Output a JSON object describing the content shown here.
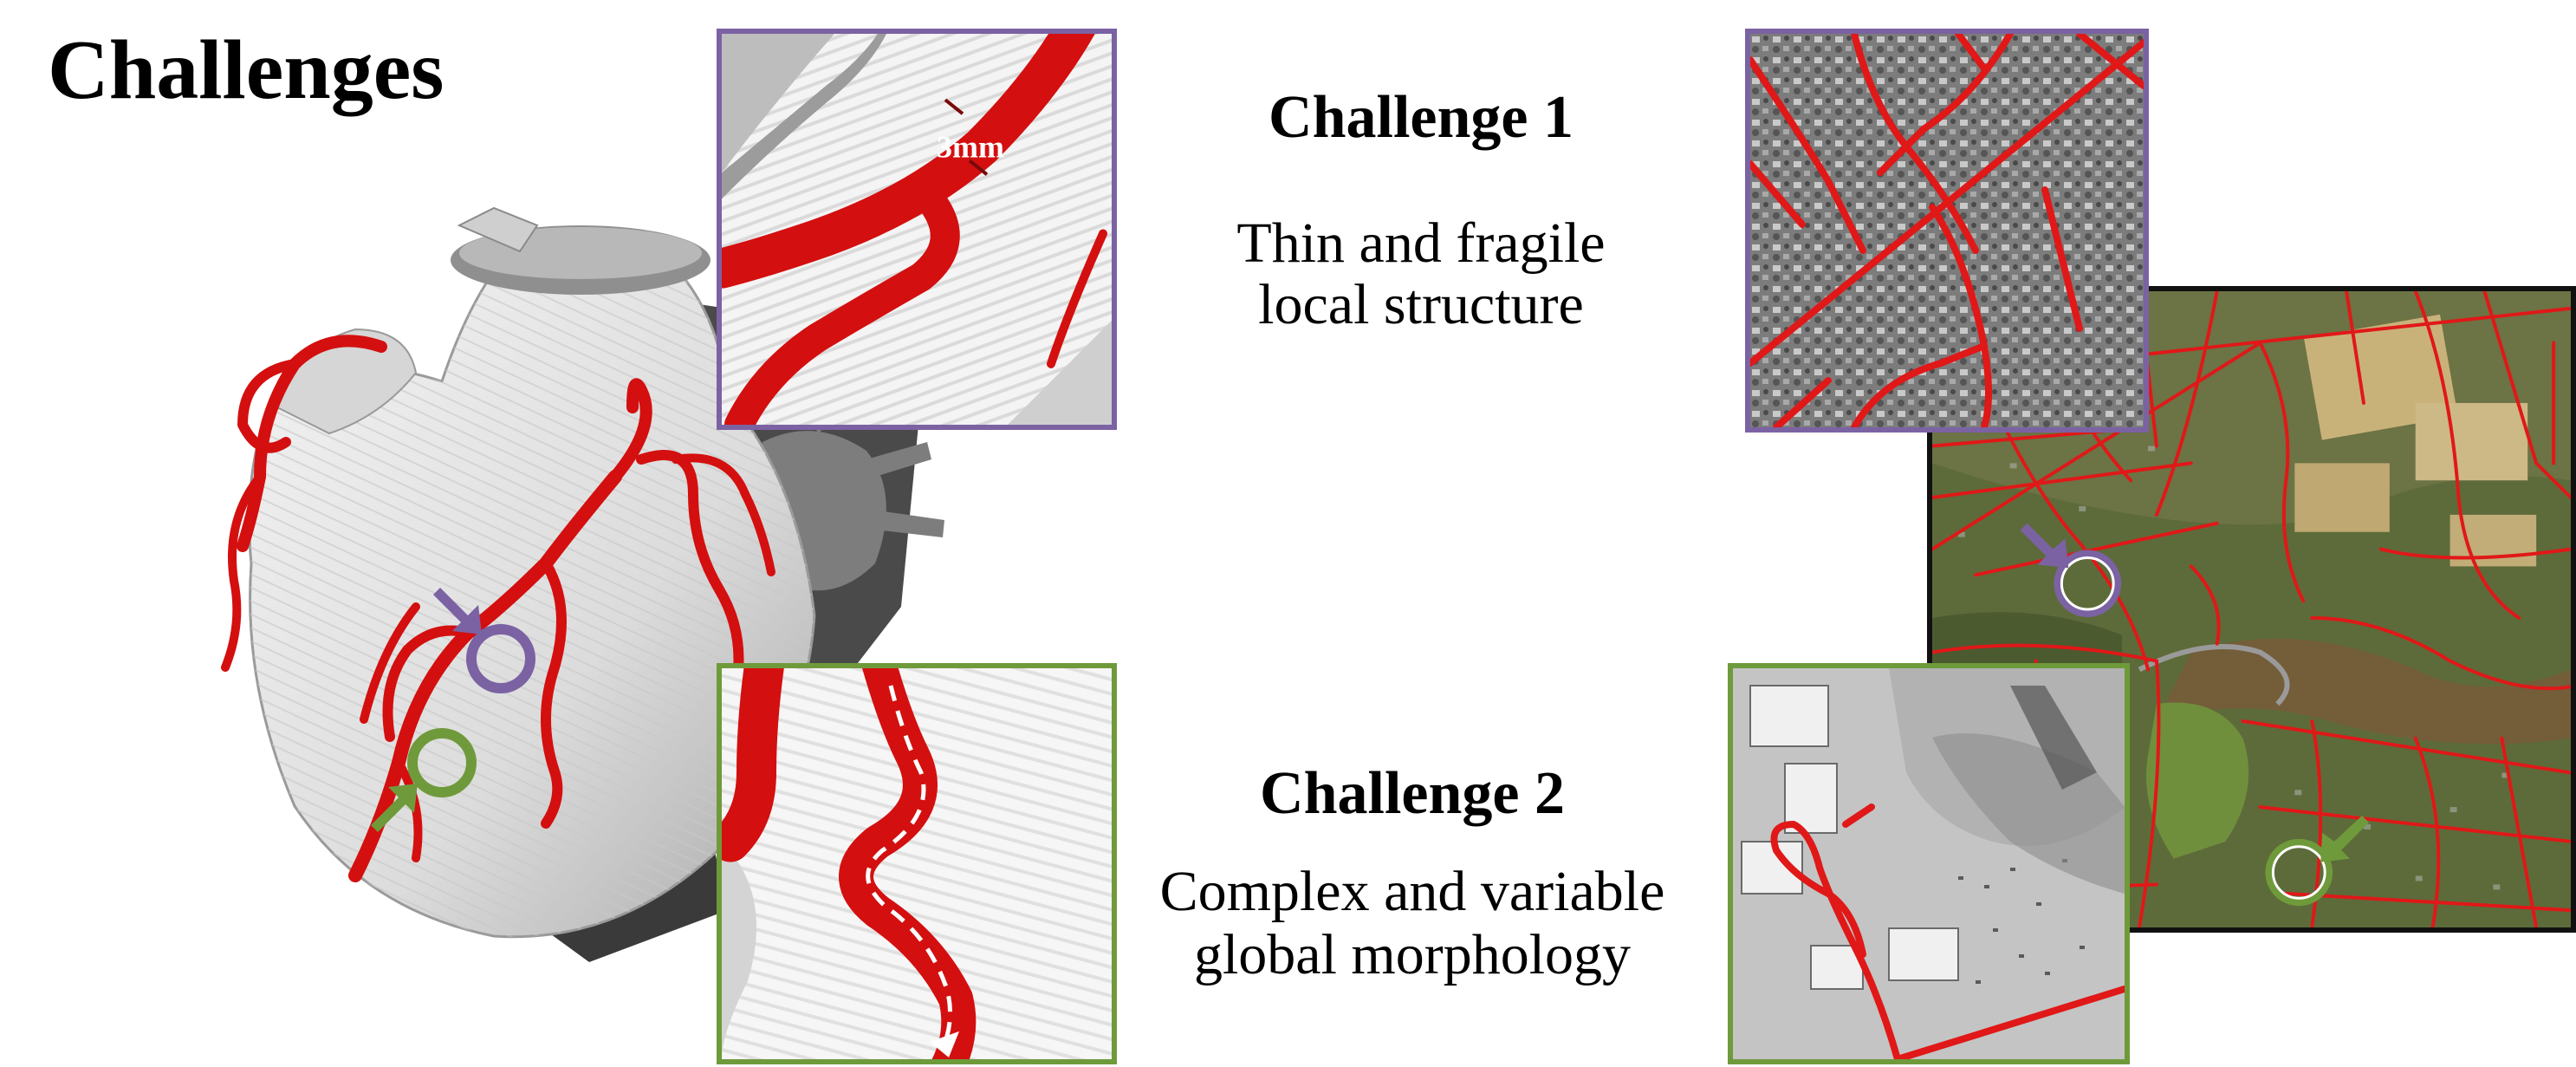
{
  "page": {
    "title": "Challenges"
  },
  "challenge1": {
    "title": "Challenge 1",
    "desc_line1": "Thin and fragile",
    "desc_line2": "local structure",
    "measurement": "3mm",
    "accent": "#7b62a3"
  },
  "challenge2": {
    "title": "Challenge 2",
    "desc_line1": "Complex and variable",
    "desc_line2": "global morphology",
    "accent": "#6f9a3b"
  },
  "colors": {
    "vessel": "#d40f0f",
    "road": "#e01818",
    "purple": "#7b62a3",
    "green": "#6f9a3b"
  },
  "icons": [
    "heart-model-illustration",
    "vessel-closeup-thin",
    "vessel-closeup-winding",
    "road-map-aerial",
    "road-closeup-grid",
    "road-closeup-loop",
    "arrow-marker",
    "circle-marker"
  ]
}
